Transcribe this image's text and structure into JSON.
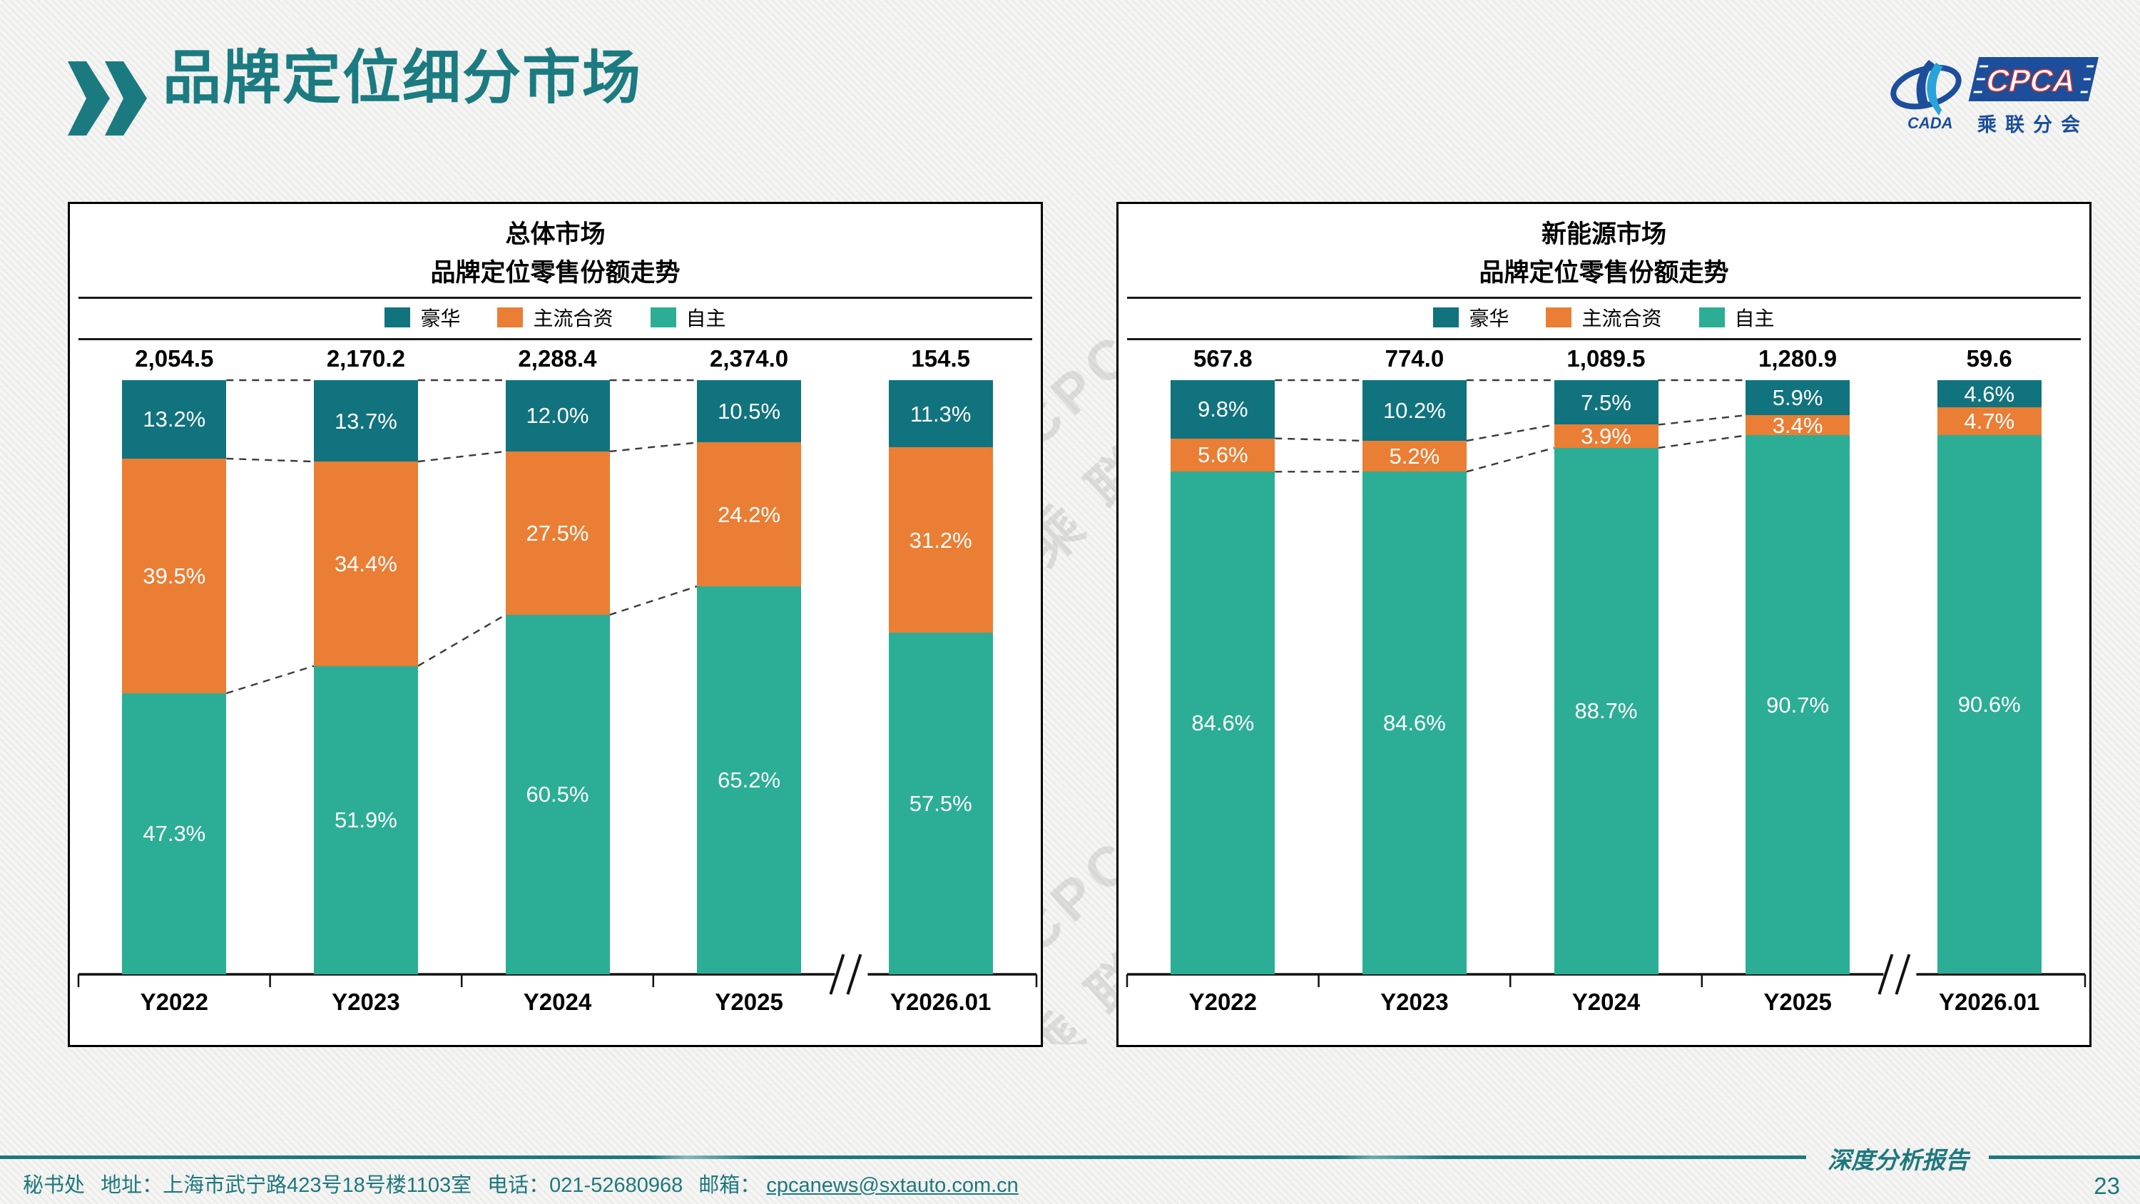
{
  "page": {
    "title": "品牌定位细分市场",
    "page_number": "23"
  },
  "logo": {
    "cpca": "CPCA",
    "cada": "CADA",
    "subtitle": "乘联分会"
  },
  "watermark": {
    "line1": "CPCA",
    "line2": "乘 联"
  },
  "footer": {
    "secretariat": "秘书处",
    "address": "地址：上海市武宁路423号18号楼1103室",
    "phone": "电话：021-52680968",
    "email_label": "邮箱：",
    "email": "cpcanews@sxtauto.com.cn",
    "report_name": "深度分析报告"
  },
  "colors": {
    "luxury": "#10737E",
    "joint_venture": "#EA7E35",
    "domestic": "#2BAE95",
    "title_teal": "#1B7B81",
    "logo_blue": "#1C4E9C"
  },
  "chart_data": [
    {
      "type": "bar",
      "stacked_percent": true,
      "title": "总体市场",
      "subtitle": "品牌定位零售份额走势",
      "categories": [
        "Y2022",
        "Y2023",
        "Y2024",
        "Y2025",
        "Y2026.01"
      ],
      "totals": [
        "2,054.5",
        "2,170.2",
        "2,288.4",
        "2,374.0",
        "154.5"
      ],
      "axis_break_before_index": 4,
      "legend": [
        "豪华",
        "主流合资",
        "自主"
      ],
      "series": [
        {
          "name": "豪华",
          "color_key": "luxury",
          "values": [
            13.2,
            13.7,
            12.0,
            10.5,
            11.3
          ]
        },
        {
          "name": "主流合资",
          "color_key": "joint_venture",
          "values": [
            39.5,
            34.4,
            27.5,
            24.2,
            31.2
          ]
        },
        {
          "name": "自主",
          "color_key": "domestic",
          "values": [
            47.3,
            51.9,
            60.5,
            65.2,
            57.5
          ]
        }
      ]
    },
    {
      "type": "bar",
      "stacked_percent": true,
      "title": "新能源市场",
      "subtitle": "品牌定位零售份额走势",
      "categories": [
        "Y2022",
        "Y2023",
        "Y2024",
        "Y2025",
        "Y2026.01"
      ],
      "totals": [
        "567.8",
        "774.0",
        "1,089.5",
        "1,280.9",
        "59.6"
      ],
      "axis_break_before_index": 4,
      "legend": [
        "豪华",
        "主流合资",
        "自主"
      ],
      "series": [
        {
          "name": "豪华",
          "color_key": "luxury",
          "values": [
            9.8,
            10.2,
            7.5,
            5.9,
            4.6
          ]
        },
        {
          "name": "主流合资",
          "color_key": "joint_venture",
          "values": [
            5.6,
            5.2,
            3.9,
            3.4,
            4.7
          ]
        },
        {
          "name": "自主",
          "color_key": "domestic",
          "values": [
            84.6,
            84.6,
            88.7,
            90.7,
            90.6
          ]
        }
      ]
    }
  ]
}
